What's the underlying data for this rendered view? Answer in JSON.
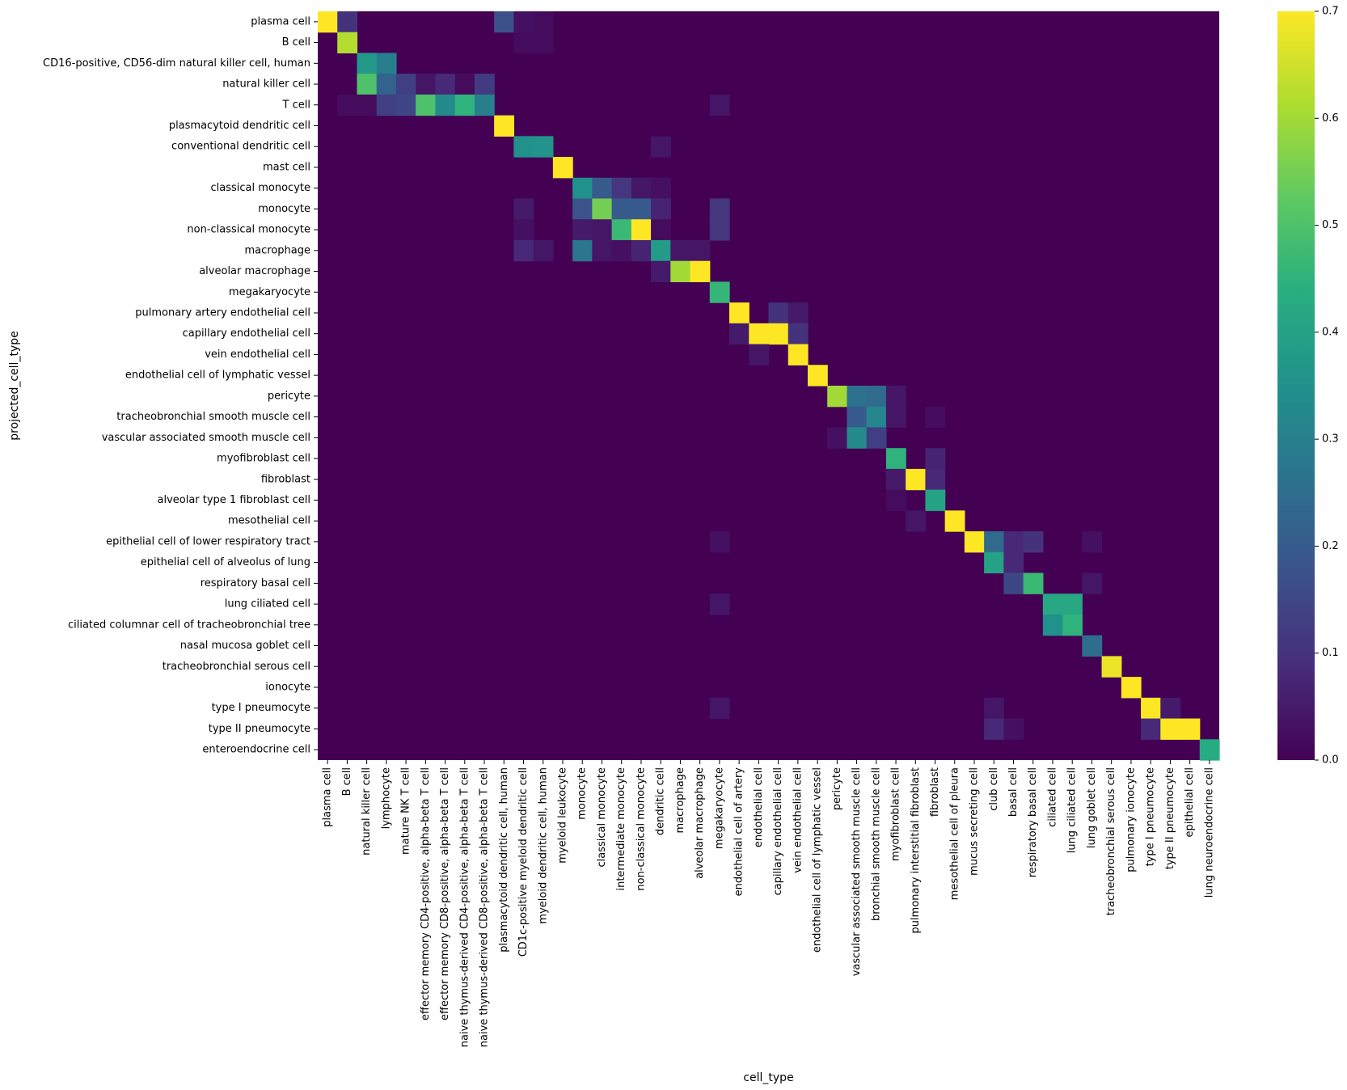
{
  "chart_data": {
    "type": "heatmap",
    "xlabel": "cell_type",
    "ylabel": "projected_cell_type",
    "x_categories": [
      "plasma cell",
      "B cell",
      "natural killer cell",
      "lymphocyte",
      "mature NK T cell",
      "effector memory CD4-positive, alpha-beta T cell",
      "effector memory CD8-positive, alpha-beta T cell",
      "naive thymus-derived CD4-positive, alpha-beta T cell",
      "naive thymus-derived CD8-positive, alpha-beta T cell",
      "plasmacytoid dendritic cell, human",
      "CD1c-positive myeloid dendritic cell",
      "myeloid dendritic cell, human",
      "myeloid leukocyte",
      "monocyte",
      "classical monocyte",
      "intermediate monocyte",
      "non-classical monocyte",
      "dendritic cell",
      "macrophage",
      "alveolar macrophage",
      "megakaryocyte",
      "endothelial cell of artery",
      "endothelial cell",
      "capillary endothelial cell",
      "vein endothelial cell",
      "endothelial cell of lymphatic vessel",
      "pericyte",
      "vascular associated smooth muscle cell",
      "bronchial smooth muscle cell",
      "myofibroblast cell",
      "pulmonary interstitial fibroblast",
      "fibroblast",
      "mesothelial cell of pleura",
      "mucus secreting cell",
      "club cell",
      "basal cell",
      "respiratory basal cell",
      "ciliated cell",
      "lung ciliated cell",
      "lung goblet cell",
      "tracheobronchial serous cell",
      "pulmonary ionocyte",
      "type I pneumocyte",
      "type II pneumocyte",
      "epithelial cell",
      "lung neuroendocrine cell"
    ],
    "y_categories": [
      "plasma cell",
      "B cell",
      "CD16-positive, CD56-dim natural killer cell, human",
      "natural killer cell",
      "T cell",
      "plasmacytoid dendritic cell",
      "conventional dendritic cell",
      "mast cell",
      "classical monocyte",
      "monocyte",
      "non-classical monocyte",
      "macrophage",
      "alveolar macrophage",
      "megakaryocyte",
      "pulmonary artery endothelial cell",
      "capillary endothelial cell",
      "vein endothelial cell",
      "endothelial cell of lymphatic vessel",
      "pericyte",
      "tracheobronchial smooth muscle cell",
      "vascular associated smooth muscle cell",
      "myofibroblast cell",
      "fibroblast",
      "alveolar type 1 fibroblast cell",
      "mesothelial cell",
      "epithelial cell of lower respiratory tract",
      "epithelial cell of alveolus of lung",
      "respiratory basal cell",
      "lung ciliated cell",
      "ciliated columnar cell of tracheobronchial tree",
      "nasal mucosa goblet cell",
      "tracheobronchial serous cell",
      "ionocyte",
      "type I pneumocyte",
      "type II pneumocyte",
      "enteroendocrine cell"
    ],
    "cells": [
      [
        0,
        0,
        0.7
      ],
      [
        0,
        1,
        0.1
      ],
      [
        0,
        9,
        0.17
      ],
      [
        0,
        10,
        0.03
      ],
      [
        0,
        11,
        0.02
      ],
      [
        1,
        1,
        0.62
      ],
      [
        1,
        10,
        0.02
      ],
      [
        1,
        11,
        0.02
      ],
      [
        2,
        2,
        0.37
      ],
      [
        2,
        3,
        0.3
      ],
      [
        3,
        2,
        0.5
      ],
      [
        3,
        3,
        0.22
      ],
      [
        3,
        4,
        0.13
      ],
      [
        3,
        5,
        0.04
      ],
      [
        3,
        6,
        0.08
      ],
      [
        3,
        7,
        0.02
      ],
      [
        3,
        8,
        0.12
      ],
      [
        4,
        1,
        0.02
      ],
      [
        4,
        2,
        0.02
      ],
      [
        4,
        3,
        0.13
      ],
      [
        4,
        4,
        0.15
      ],
      [
        4,
        5,
        0.5
      ],
      [
        4,
        6,
        0.33
      ],
      [
        4,
        7,
        0.45
      ],
      [
        4,
        8,
        0.3
      ],
      [
        4,
        20,
        0.04
      ],
      [
        5,
        9,
        0.7
      ],
      [
        6,
        10,
        0.35
      ],
      [
        6,
        11,
        0.36
      ],
      [
        6,
        17,
        0.04
      ],
      [
        7,
        12,
        0.7
      ],
      [
        8,
        13,
        0.35
      ],
      [
        8,
        14,
        0.2
      ],
      [
        8,
        15,
        0.11
      ],
      [
        8,
        16,
        0.04
      ],
      [
        8,
        17,
        0.03
      ],
      [
        9,
        10,
        0.05
      ],
      [
        9,
        13,
        0.18
      ],
      [
        9,
        14,
        0.55
      ],
      [
        9,
        15,
        0.2
      ],
      [
        9,
        16,
        0.2
      ],
      [
        9,
        17,
        0.07
      ],
      [
        9,
        20,
        0.11
      ],
      [
        10,
        10,
        0.03
      ],
      [
        10,
        13,
        0.05
      ],
      [
        10,
        14,
        0.04
      ],
      [
        10,
        15,
        0.47
      ],
      [
        10,
        16,
        0.7
      ],
      [
        10,
        17,
        0.02
      ],
      [
        10,
        20,
        0.11
      ],
      [
        11,
        10,
        0.08
      ],
      [
        11,
        11,
        0.04
      ],
      [
        11,
        13,
        0.27
      ],
      [
        11,
        14,
        0.04
      ],
      [
        11,
        15,
        0.03
      ],
      [
        11,
        16,
        0.07
      ],
      [
        11,
        17,
        0.38
      ],
      [
        11,
        18,
        0.04
      ],
      [
        11,
        19,
        0.04
      ],
      [
        12,
        17,
        0.05
      ],
      [
        12,
        18,
        0.6
      ],
      [
        12,
        19,
        0.7
      ],
      [
        13,
        20,
        0.46
      ],
      [
        14,
        21,
        0.7
      ],
      [
        14,
        23,
        0.1
      ],
      [
        14,
        24,
        0.05
      ],
      [
        15,
        21,
        0.05
      ],
      [
        15,
        22,
        0.7
      ],
      [
        15,
        23,
        0.7
      ],
      [
        15,
        24,
        0.1
      ],
      [
        16,
        22,
        0.04
      ],
      [
        16,
        24,
        0.7
      ],
      [
        17,
        25,
        0.7
      ],
      [
        18,
        26,
        0.6
      ],
      [
        18,
        27,
        0.26
      ],
      [
        18,
        28,
        0.24
      ],
      [
        18,
        29,
        0.04
      ],
      [
        19,
        27,
        0.2
      ],
      [
        19,
        28,
        0.32
      ],
      [
        19,
        29,
        0.04
      ],
      [
        19,
        31,
        0.02
      ],
      [
        20,
        26,
        0.03
      ],
      [
        20,
        27,
        0.33
      ],
      [
        20,
        28,
        0.13
      ],
      [
        21,
        29,
        0.45
      ],
      [
        21,
        31,
        0.07
      ],
      [
        22,
        29,
        0.05
      ],
      [
        22,
        30,
        0.7
      ],
      [
        22,
        31,
        0.08
      ],
      [
        23,
        29,
        0.02
      ],
      [
        23,
        31,
        0.4
      ],
      [
        24,
        30,
        0.04
      ],
      [
        24,
        32,
        0.7
      ],
      [
        25,
        20,
        0.03
      ],
      [
        25,
        33,
        0.7
      ],
      [
        25,
        34,
        0.24
      ],
      [
        25,
        35,
        0.08
      ],
      [
        25,
        36,
        0.1
      ],
      [
        25,
        39,
        0.03
      ],
      [
        26,
        34,
        0.4
      ],
      [
        26,
        35,
        0.08
      ],
      [
        27,
        35,
        0.15
      ],
      [
        27,
        36,
        0.47
      ],
      [
        27,
        39,
        0.04
      ],
      [
        28,
        20,
        0.04
      ],
      [
        28,
        37,
        0.42
      ],
      [
        28,
        38,
        0.42
      ],
      [
        29,
        37,
        0.35
      ],
      [
        29,
        38,
        0.45
      ],
      [
        30,
        39,
        0.25
      ],
      [
        31,
        40,
        0.68
      ],
      [
        32,
        41,
        0.7
      ],
      [
        33,
        20,
        0.04
      ],
      [
        33,
        34,
        0.04
      ],
      [
        33,
        42,
        0.7
      ],
      [
        33,
        43,
        0.05
      ],
      [
        34,
        34,
        0.08
      ],
      [
        34,
        35,
        0.03
      ],
      [
        34,
        42,
        0.08
      ],
      [
        34,
        43,
        0.7
      ],
      [
        34,
        44,
        0.7
      ],
      [
        35,
        45,
        0.43
      ]
    ],
    "vmin": 0.0,
    "vmax": 0.7,
    "colormap": "viridis",
    "colorbar_ticks": [
      "0.0",
      "0.1",
      "0.2",
      "0.3",
      "0.4",
      "0.5",
      "0.6",
      "0.7"
    ]
  }
}
